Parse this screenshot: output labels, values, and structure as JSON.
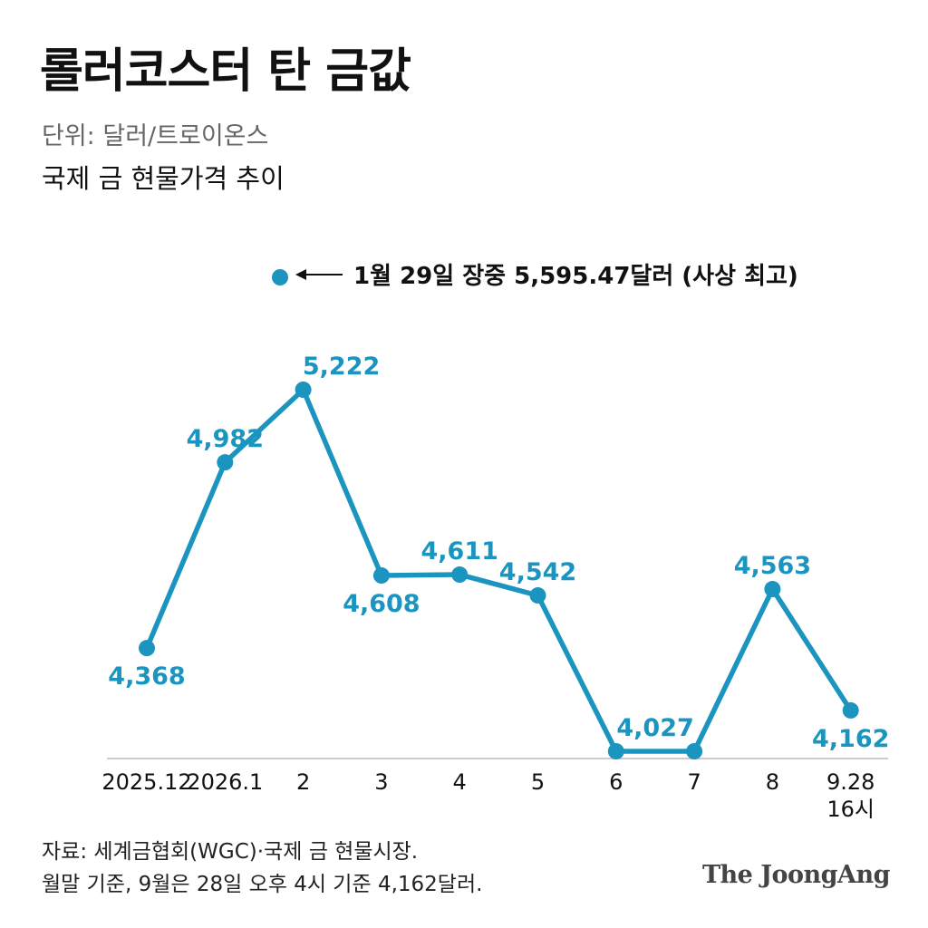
{
  "header": {
    "title": "롤러코스터 탄 금값",
    "unit": "단위: 달러/트로이온스",
    "subtitle": "국제 금 현물가격 추이"
  },
  "chart_data": {
    "type": "line",
    "title": "국제 금 현물가격 추이",
    "unit": "달러/트로이온스",
    "categories": [
      "2025.12",
      "2026.1",
      "2",
      "3",
      "4",
      "5",
      "6",
      "7",
      "8",
      "9.28\n16시"
    ],
    "series": [
      {
        "values": [
          4368,
          4982,
          5222,
          4608,
          4611,
          4542,
          4027,
          4027,
          4563,
          4162
        ],
        "labels": [
          "4,368",
          "4,982",
          "5,222",
          "4,608",
          "4,611",
          "4,542",
          "",
          "4,027",
          "4,563",
          "4,162"
        ],
        "color": "#1b95c0"
      }
    ],
    "annotation": {
      "text": "1월 29일 장중 5,595.47달러 (사상 최고)",
      "value": 5595.47
    },
    "legend": "none",
    "grid": false
  },
  "footer": {
    "source_line1": "자료: 세계금협회(WGC)·국제 금 현물시장.",
    "source_line2": "월말 기준, 9월은 28일 오후 4시 기준 4,162달러.",
    "logo": "The JoongAng"
  },
  "colors": {
    "line": "#1b95c0",
    "label": "#1b95c0",
    "axis": "#bbbbbb"
  }
}
